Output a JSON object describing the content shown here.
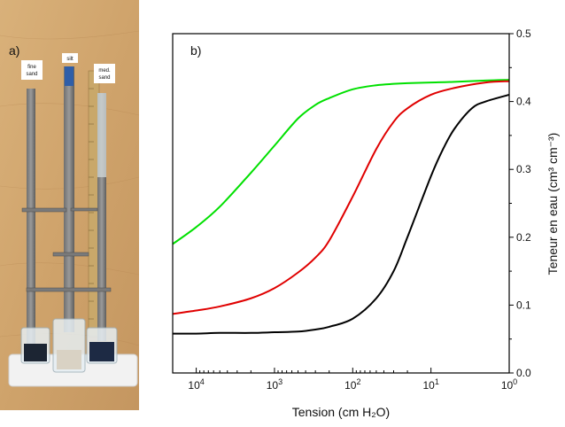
{
  "photo": {
    "panel_label": "a)",
    "labels": [
      {
        "line1": "fine",
        "line2": "sand"
      },
      {
        "line1": "silt",
        "line2": ""
      },
      {
        "line1": "med.",
        "line2": "sand"
      }
    ]
  },
  "chart_data": {
    "type": "line",
    "panel_label": "b)",
    "title": "",
    "xlabel": "Tension (cm H₂O)",
    "ylabel": "Teneur en eau (cm³ cm⁻³)",
    "x_scale": "log",
    "x_reversed": true,
    "xlim": [
      20000,
      1
    ],
    "ylim": [
      0,
      0.5
    ],
    "x_ticks": [
      {
        "value": 10000,
        "base": "10",
        "exp": "4"
      },
      {
        "value": 1000,
        "base": "10",
        "exp": "3"
      },
      {
        "value": 100,
        "base": "10",
        "exp": "2"
      },
      {
        "value": 10,
        "base": "10",
        "exp": "1"
      },
      {
        "value": 1,
        "base": "10",
        "exp": "0"
      }
    ],
    "y_ticks": [
      "0.0",
      "0.1",
      "0.2",
      "0.3",
      "0.4",
      "0.5"
    ],
    "y_axis_side": "right",
    "grid": false,
    "legend": "none",
    "series": [
      {
        "color": "#00e000",
        "x": [
          20000,
          10000,
          5000,
          2000,
          1000,
          500,
          300,
          200,
          100,
          50,
          30,
          20,
          10,
          5,
          2,
          1
        ],
        "y": [
          0.19,
          0.215,
          0.245,
          0.295,
          0.335,
          0.375,
          0.395,
          0.405,
          0.418,
          0.424,
          0.426,
          0.427,
          0.428,
          0.429,
          0.431,
          0.432
        ]
      },
      {
        "color": "#e00000",
        "x": [
          20000,
          10000,
          5000,
          2000,
          1000,
          500,
          300,
          200,
          100,
          50,
          30,
          20,
          10,
          5,
          2,
          1
        ],
        "y": [
          0.087,
          0.092,
          0.098,
          0.11,
          0.125,
          0.148,
          0.17,
          0.195,
          0.26,
          0.33,
          0.37,
          0.39,
          0.41,
          0.42,
          0.428,
          0.43
        ]
      },
      {
        "color": "#000000",
        "x": [
          20000,
          10000,
          5000,
          2000,
          1000,
          500,
          300,
          200,
          100,
          50,
          30,
          20,
          10,
          7,
          5,
          3,
          2,
          1
        ],
        "y": [
          0.058,
          0.058,
          0.059,
          0.059,
          0.06,
          0.061,
          0.064,
          0.068,
          0.08,
          0.11,
          0.15,
          0.2,
          0.29,
          0.33,
          0.36,
          0.39,
          0.4,
          0.41
        ]
      }
    ]
  }
}
